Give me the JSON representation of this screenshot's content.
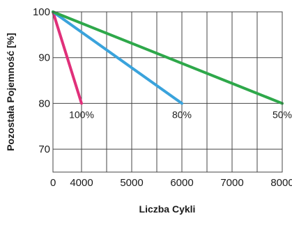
{
  "chart_data": {
    "type": "line",
    "xlabel": "Liczba Cykli",
    "ylabel": "Pozostała Pojemność [%]",
    "x_ticks": [
      {
        "label": "0",
        "value": 0
      },
      {
        "label": "4000",
        "value": 4000
      },
      {
        "label": "5000",
        "value": 5000
      },
      {
        "label": "6000",
        "value": 6000
      },
      {
        "label": "7000",
        "value": 7000
      },
      {
        "label": "8000",
        "value": 8000
      }
    ],
    "y_ticks": [
      70,
      80,
      90,
      100
    ],
    "ylim": [
      65,
      100
    ],
    "grid": true,
    "series": [
      {
        "name": "100%",
        "color": "#e0307a",
        "points": [
          [
            0,
            100
          ],
          [
            4000,
            80
          ]
        ]
      },
      {
        "name": "80%",
        "color": "#3aa3dc",
        "points": [
          [
            0,
            100
          ],
          [
            6000,
            80
          ]
        ]
      },
      {
        "name": "50%",
        "color": "#2ea84a",
        "points": [
          [
            0,
            100
          ],
          [
            8000,
            80
          ]
        ]
      }
    ],
    "annotations": [
      {
        "text": "100%",
        "x": 4000,
        "y": 80
      },
      {
        "text": "80%",
        "x": 6000,
        "y": 80
      },
      {
        "text": "50%",
        "x": 8000,
        "y": 80
      }
    ]
  }
}
